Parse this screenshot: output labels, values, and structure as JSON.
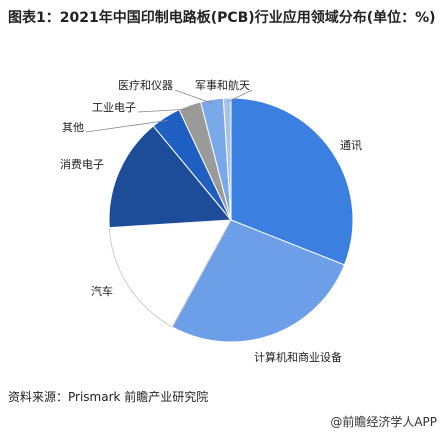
{
  "chart_data": {
    "type": "pie",
    "title": "图表1：2021年中国印制电路板(PCB)行业应用领域分布(单位：%)",
    "source": "资料来源：Prismark 前瞻产业研究院",
    "brand": "@前瞻经济学人APP",
    "categories": [
      "通讯",
      "计算机和商业设备",
      "汽车",
      "消费电子",
      "其他",
      "工业电子",
      "医疗和仪器",
      "军事和航天"
    ],
    "values": [
      31,
      27,
      16,
      15,
      4,
      3,
      3,
      1
    ],
    "colors": [
      "#3b7fe0",
      "#6d9fe8",
      "#ffffff",
      "#1d4c99",
      "#1f5fc2",
      "#9a9a9a",
      "#7aa9ea",
      "#a8c3ea"
    ]
  }
}
